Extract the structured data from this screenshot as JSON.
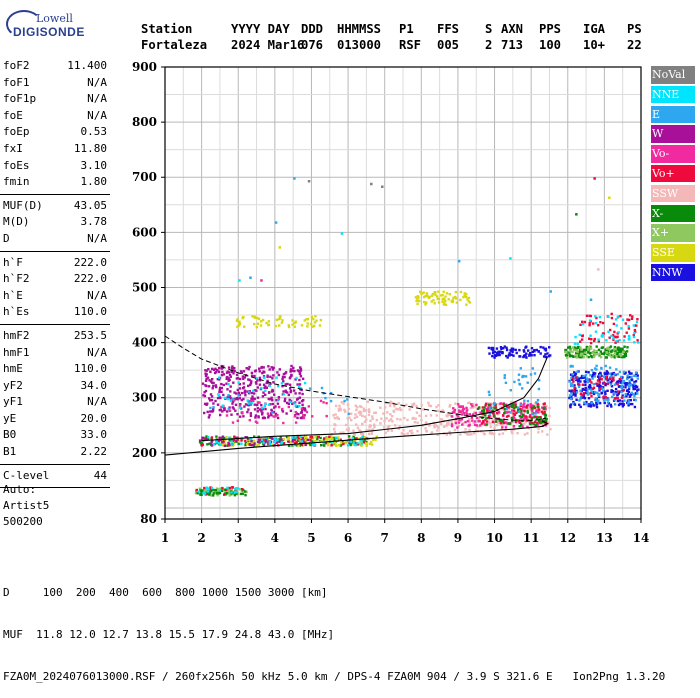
{
  "logo": {
    "line1": "Lowell",
    "line2": "DIGISONDE"
  },
  "header": {
    "row1": [
      "Station",
      "YYYY DAY",
      "DDD",
      "HHMMSS",
      "P1",
      "FFS",
      "S",
      "AXN",
      "PPS",
      "IGA",
      "PS"
    ],
    "row2": [
      "Fortaleza",
      "2024 Mar16",
      "076",
      "013000",
      "RSF",
      "005",
      "2",
      "713",
      "100",
      "10+",
      "22"
    ]
  },
  "params": {
    "group1": [
      {
        "k": "foF2",
        "v": "11.400"
      },
      {
        "k": "foF1",
        "v": "N/A"
      },
      {
        "k": "foF1p",
        "v": "N/A"
      },
      {
        "k": "foE",
        "v": "N/A"
      },
      {
        "k": "foEp",
        "v": "0.53"
      },
      {
        "k": "fxI",
        "v": "11.80"
      },
      {
        "k": "foEs",
        "v": "3.10"
      },
      {
        "k": "fmin",
        "v": "1.80"
      }
    ],
    "group2": [
      {
        "k": "MUF(D)",
        "v": "43.05"
      },
      {
        "k": "M(D)",
        "v": "3.78"
      },
      {
        "k": "D",
        "v": "N/A"
      }
    ],
    "group3": [
      {
        "k": "h`F",
        "v": "222.0"
      },
      {
        "k": "h`F2",
        "v": "222.0"
      },
      {
        "k": "h`E",
        "v": "N/A"
      },
      {
        "k": "h`Es",
        "v": "110.0"
      }
    ],
    "group4": [
      {
        "k": "hmF2",
        "v": "253.5"
      },
      {
        "k": "hmF1",
        "v": "N/A"
      },
      {
        "k": "hmE",
        "v": "110.0"
      },
      {
        "k": "yF2",
        "v": "34.0"
      },
      {
        "k": "yF1",
        "v": "N/A"
      },
      {
        "k": "yE",
        "v": "20.0"
      },
      {
        "k": "B0",
        "v": "33.0"
      },
      {
        "k": "B1",
        "v": "2.22"
      }
    ],
    "group5": [
      {
        "k": "C-level",
        "v": "44"
      }
    ]
  },
  "auto": {
    "line1": "Auto:",
    "line2": "Artist5",
    "line3": "500200"
  },
  "legend": [
    {
      "label": "NoVal",
      "color": "#808080"
    },
    {
      "label": "NNE",
      "color": "#00e5ff"
    },
    {
      "label": "E",
      "color": "#2da8f0"
    },
    {
      "label": "W",
      "color": "#a8109a"
    },
    {
      "label": "Vo-",
      "color": "#f22aa0"
    },
    {
      "label": "Vo+",
      "color": "#ee0a3c"
    },
    {
      "label": "SSW",
      "color": "#f4b8b8"
    },
    {
      "label": "X-",
      "color": "#0a8a0a"
    },
    {
      "label": "X+",
      "color": "#90c860"
    },
    {
      "label": "SSE",
      "color": "#d8d812"
    },
    {
      "label": "NNW",
      "color": "#1a10e0"
    }
  ],
  "footer": {
    "line1": "D     100  200  400  600  800 1000 1500 3000 [km]",
    "line2": "MUF  11.8 12.0 12.7 13.8 15.5 17.9 24.8 43.0 [MHz]",
    "line3": "FZA0M_2024076013000.RSF / 260fx256h 50 kHz 5.0 km / DPS-4 FZA0M 904 / 3.9 S 321.6 E   Ion2Png 1.3.20"
  },
  "chart_data": {
    "type": "scatter",
    "xlim": [
      1,
      14
    ],
    "ylim": [
      80,
      900
    ],
    "xticks": [
      "1",
      "2",
      "3",
      "4",
      "5",
      "6",
      "7",
      "8",
      "9",
      "10",
      "11",
      "12",
      "13",
      "14"
    ],
    "yticks": [
      "80",
      "200",
      "300",
      "400",
      "500",
      "600",
      "700",
      "800",
      "900"
    ],
    "grid": true,
    "clusters": [
      {
        "series": "X+",
        "x": [
          1.8,
          3.2
        ],
        "y": [
          125,
          138
        ],
        "n": 70
      },
      {
        "series": "X-",
        "x": [
          1.8,
          3.2
        ],
        "y": [
          125,
          135
        ],
        "n": 40
      },
      {
        "series": "Vo+",
        "x": [
          1.8,
          3.2
        ],
        "y": [
          125,
          140
        ],
        "n": 14
      },
      {
        "series": "NNE",
        "x": [
          1.8,
          3.2
        ],
        "y": [
          128,
          140
        ],
        "n": 14
      },
      {
        "series": "X-",
        "x": [
          1.9,
          6.5
        ],
        "y": [
          215,
          232
        ],
        "n": 140
      },
      {
        "series": "SSE",
        "x": [
          2.5,
          6.8
        ],
        "y": [
          215,
          232
        ],
        "n": 130
      },
      {
        "series": "Vo+",
        "x": [
          1.9,
          6.5
        ],
        "y": [
          215,
          232
        ],
        "n": 60
      },
      {
        "series": "W",
        "x": [
          1.9,
          5.0
        ],
        "y": [
          215,
          232
        ],
        "n": 50
      },
      {
        "series": "NNE",
        "x": [
          2.0,
          6.5
        ],
        "y": [
          215,
          232
        ],
        "n": 50
      },
      {
        "series": "SSW",
        "x": [
          5.5,
          11.5
        ],
        "y": [
          235,
          295
        ],
        "n": 380
      },
      {
        "series": "Vo-",
        "x": [
          8.8,
          11.4
        ],
        "y": [
          248,
          292
        ],
        "n": 160
      },
      {
        "series": "Vo+",
        "x": [
          9.5,
          11.4
        ],
        "y": [
          255,
          292
        ],
        "n": 80
      },
      {
        "series": "X-",
        "x": [
          9.5,
          11.4
        ],
        "y": [
          250,
          290
        ],
        "n": 70
      },
      {
        "series": "W",
        "x": [
          2.0,
          4.8
        ],
        "y": [
          265,
          360
        ],
        "n": 380
      },
      {
        "series": "Vo-",
        "x": [
          2.5,
          5.5
        ],
        "y": [
          255,
          300
        ],
        "n": 40
      },
      {
        "series": "NNE",
        "x": [
          2.2,
          4.8
        ],
        "y": [
          280,
          340
        ],
        "n": 35
      },
      {
        "series": "E",
        "x": [
          2.2,
          6.0
        ],
        "y": [
          270,
          320
        ],
        "n": 20
      },
      {
        "series": "SSE",
        "x": [
          2.8,
          5.3
        ],
        "y": [
          430,
          450
        ],
        "n": 60
      },
      {
        "series": "SSE",
        "x": [
          7.8,
          9.3
        ],
        "y": [
          470,
          495
        ],
        "n": 70
      },
      {
        "series": "NNW",
        "x": [
          9.8,
          11.5
        ],
        "y": [
          375,
          395
        ],
        "n": 90
      },
      {
        "series": "E",
        "x": [
          9.8,
          11.2
        ],
        "y": [
          270,
          360
        ],
        "n": 40
      },
      {
        "series": "X-",
        "x": [
          11.9,
          13.6
        ],
        "y": [
          375,
          395
        ],
        "n": 140
      },
      {
        "series": "X+",
        "x": [
          11.9,
          13.5
        ],
        "y": [
          375,
          395
        ],
        "n": 50
      },
      {
        "series": "NNW",
        "x": [
          12.0,
          13.9
        ],
        "y": [
          285,
          350
        ],
        "n": 260
      },
      {
        "series": "E",
        "x": [
          12.0,
          13.9
        ],
        "y": [
          290,
          360
        ],
        "n": 120
      },
      {
        "series": "Vo+",
        "x": [
          12.1,
          13.6
        ],
        "y": [
          300,
          340
        ],
        "n": 40
      },
      {
        "series": "Vo+",
        "x": [
          12.3,
          13.9
        ],
        "y": [
          400,
          455
        ],
        "n": 60
      },
      {
        "series": "NNE",
        "x": [
          12.1,
          13.9
        ],
        "y": [
          400,
          450
        ],
        "n": 40
      }
    ],
    "dashed_curve": {
      "x": [
        1.0,
        1.5,
        2.0,
        3.0,
        4.0,
        5.0,
        6.0,
        7.0,
        8.0,
        9.0,
        10.0,
        10.8,
        11.2,
        11.4
      ],
      "y": [
        412,
        390,
        370,
        345,
        325,
        312,
        302,
        292,
        280,
        270,
        262,
        258,
        260,
        263
      ]
    },
    "solid_upper": {
      "x": [
        2.0,
        4.0,
        6.0,
        8.0,
        9.0,
        10.0,
        10.8,
        11.2,
        11.45
      ],
      "y": [
        222,
        230,
        235,
        250,
        262,
        275,
        300,
        335,
        375
      ]
    },
    "solid_lower": {
      "x": [
        1.0,
        3.0,
        5.0,
        7.0,
        9.0,
        10.5,
        11.3,
        11.45,
        11.3
      ],
      "y": [
        196,
        208,
        218,
        228,
        237,
        243,
        248,
        253,
        258
      ]
    },
    "scattered": [
      {
        "series": "NNE",
        "x": 3.0,
        "y": 515
      },
      {
        "series": "E",
        "x": 3.3,
        "y": 520
      },
      {
        "series": "Vo-",
        "x": 3.6,
        "y": 515
      },
      {
        "series": "E",
        "x": 4.0,
        "y": 620
      },
      {
        "series": "SSE",
        "x": 4.1,
        "y": 575
      },
      {
        "series": "E",
        "x": 4.5,
        "y": 700
      },
      {
        "series": "NoVal",
        "x": 6.6,
        "y": 690
      },
      {
        "series": "NoVal",
        "x": 6.9,
        "y": 685
      },
      {
        "series": "E",
        "x": 9.0,
        "y": 550
      },
      {
        "series": "NNE",
        "x": 5.8,
        "y": 600
      },
      {
        "series": "X-",
        "x": 12.2,
        "y": 635
      },
      {
        "series": "Vo+",
        "x": 12.7,
        "y": 700
      },
      {
        "series": "SSE",
        "x": 13.1,
        "y": 665
      },
      {
        "series": "SSW",
        "x": 12.8,
        "y": 535
      },
      {
        "series": "E",
        "x": 12.6,
        "y": 480
      },
      {
        "series": "E",
        "x": 11.5,
        "y": 495
      },
      {
        "series": "NNE",
        "x": 10.4,
        "y": 555
      },
      {
        "series": "NoVal",
        "x": 4.9,
        "y": 695
      }
    ]
  }
}
